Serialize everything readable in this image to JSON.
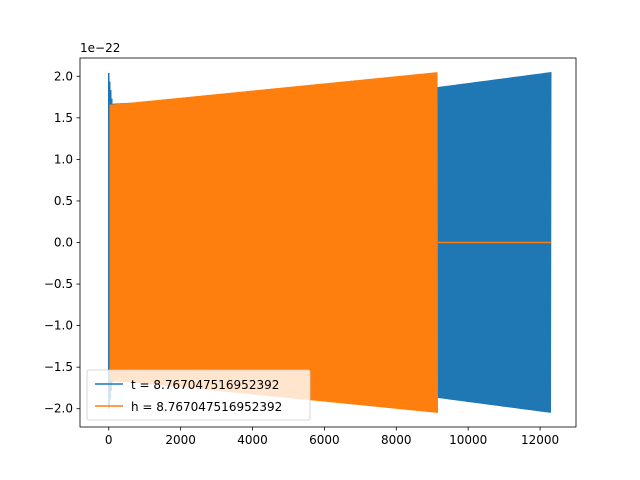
{
  "chart_data": {
    "type": "line",
    "title": "",
    "xlabel": "",
    "ylabel": "",
    "y_offset_label": "1e−22",
    "xlim": [
      -800,
      13000
    ],
    "ylim": [
      -2.22,
      2.22
    ],
    "xticks": [
      0,
      2000,
      4000,
      6000,
      8000,
      10000,
      12000
    ],
    "xtick_labels": [
      "0",
      "2000",
      "4000",
      "6000",
      "8000",
      "10000",
      "12000"
    ],
    "yticks": [
      -2.0,
      -1.5,
      -1.0,
      -0.5,
      0.0,
      0.5,
      1.0,
      1.5,
      2.0
    ],
    "ytick_labels": [
      "−2.0",
      "−1.5",
      "−1.0",
      "−0.5",
      "0.0",
      "0.5",
      "1.0",
      "1.5",
      "2.0"
    ],
    "grid": false,
    "legend_position": "lower-left",
    "series": [
      {
        "name": "t = 8.767047516952392",
        "color": "#1f77b4",
        "envelope": {
          "x": [
            0,
            100,
            9150,
            12300
          ],
          "amplitude": [
            2.04,
            1.67,
            1.87,
            2.05
          ]
        },
        "spike": {
          "x": 0,
          "min": -2.0,
          "max": 2.04
        },
        "x_end": 12300
      },
      {
        "name": "h = 8.767047516952392",
        "color": "#ff7f0e",
        "envelope": {
          "x": [
            0,
            100,
            9150
          ],
          "amplitude": [
            1.66,
            1.66,
            2.05
          ]
        },
        "signal_end": 9150,
        "tail_value": 0.0,
        "x_end": 12300
      }
    ]
  }
}
